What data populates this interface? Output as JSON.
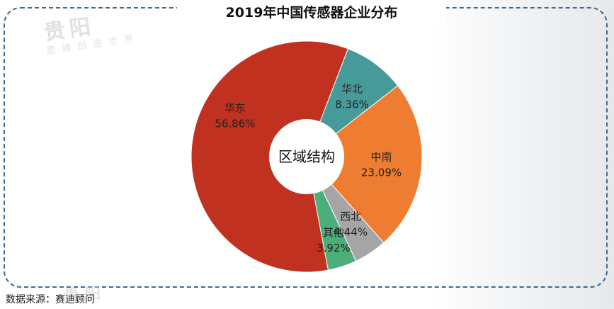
{
  "chart_data": {
    "type": "pie",
    "title": "2019年中国传感器企业分布",
    "center_label": "区域结构",
    "slices": [
      {
        "name": "华东",
        "value": 56.86,
        "label": "56.86%",
        "color": "#c0311f"
      },
      {
        "name": "华北",
        "value": 8.36,
        "label": "8.36%",
        "color": "#479a9a"
      },
      {
        "name": "中南",
        "value": 23.09,
        "label": "23.09%",
        "color": "#ee7d31"
      },
      {
        "name": "西北",
        "value": 4.44,
        "label": "4.44%",
        "color": "#a5a5a5"
      },
      {
        "name": "其他",
        "value": 3.92,
        "label": "3.92%",
        "color": "#4caf7a"
      }
    ]
  },
  "source": "数据来源：赛迪顾问",
  "watermark": {
    "main": "贵阳",
    "sub": "思维创造世界"
  }
}
